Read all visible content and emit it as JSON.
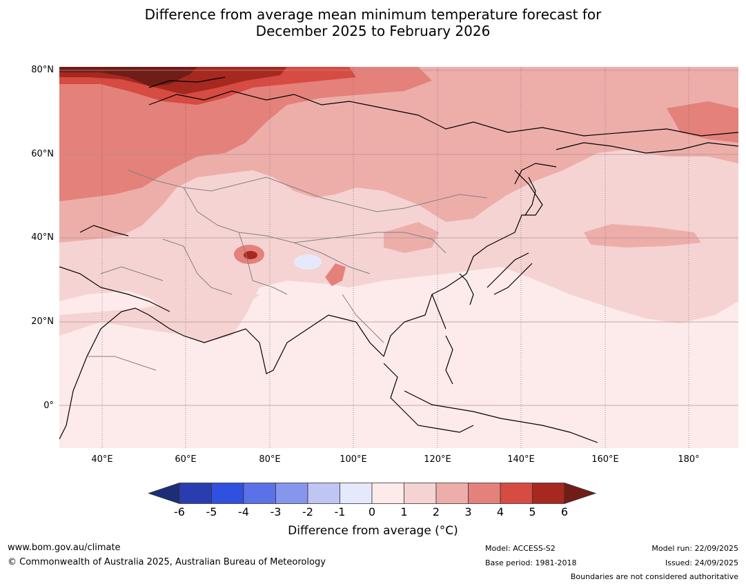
{
  "title": {
    "line1": "Difference from average mean minimum temperature forecast for",
    "line2": "December 2025 to February 2026"
  },
  "map": {
    "lat_labels": [
      "80°N",
      "60°N",
      "40°N",
      "20°N",
      "0°"
    ],
    "lon_labels": [
      "40°E",
      "60°E",
      "80°E",
      "100°E",
      "120°E",
      "140°E",
      "160°E",
      "180°"
    ]
  },
  "colorbar": {
    "ticks": [
      "-6",
      "-5",
      "-4",
      "-3",
      "-2",
      "-1",
      "0",
      "1",
      "2",
      "3",
      "4",
      "5",
      "6"
    ],
    "colors": [
      "#1c2d7a",
      "#2a3db0",
      "#3050e0",
      "#5a72e6",
      "#8596ec",
      "#bfc6f4",
      "#e6e9fb",
      "#fcebea",
      "#f5d3d2",
      "#edaeaa",
      "#e4817b",
      "#d64b42",
      "#a6281f",
      "#701c17"
    ],
    "label": "Difference from average (°C)"
  },
  "footer": {
    "url": "www.bom.gov.au/climate",
    "copyright": "© Commonwealth of Australia 2025, Australian Bureau of Meteorology",
    "model": "Model: ACCESS-S2",
    "base_period": "Base period: 1981-2018",
    "model_run": "Model run: 22/09/2025",
    "issued": "Issued: 24/09/2025",
    "disclaimer": "Boundaries are not considered authoritative"
  }
}
